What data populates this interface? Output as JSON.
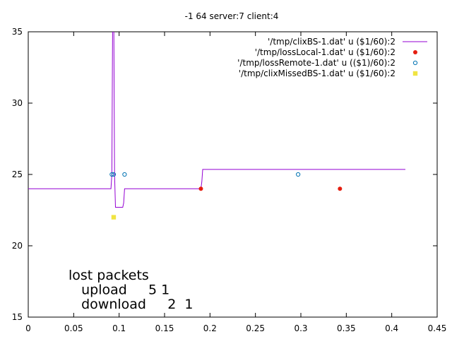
{
  "chart_data": {
    "type": "line",
    "title": "-1 64 server:7 client:4",
    "xlabel": "",
    "ylabel": "",
    "xlim": [
      0,
      0.45
    ],
    "ylim": [
      15,
      35
    ],
    "xticks": [
      "0",
      "0.05",
      "0.1",
      "0.15",
      "0.2",
      "0.25",
      "0.3",
      "0.35",
      "0.4",
      "0.45"
    ],
    "yticks": [
      "15",
      "20",
      "25",
      "30",
      "35"
    ],
    "grid": false,
    "legend_position": "top-right",
    "series": [
      {
        "name": "'/tmp/clixBS-1.dat' u ($1/60):2",
        "kind": "line",
        "color": "#9400d3",
        "x": [
          0.0,
          0.091,
          0.092,
          0.093,
          0.094,
          0.095,
          0.096,
          0.104,
          0.105,
          0.106,
          0.19,
          0.191,
          0.192,
          0.415
        ],
        "y": [
          24.0,
          24.0,
          25.0,
          38.0,
          38.0,
          25.0,
          22.7,
          22.7,
          23.0,
          24.0,
          24.0,
          24.5,
          25.35,
          25.35
        ]
      },
      {
        "name": "'/tmp/lossLocal-1.dat' u ($1/60):2",
        "kind": "points",
        "marker": "filled-circle",
        "color": "#e51e10",
        "x": [
          0.19,
          0.343
        ],
        "y": [
          24,
          24
        ]
      },
      {
        "name": "'/tmp/lossRemote-1.dat' u (($1)/60):2",
        "kind": "points",
        "marker": "open-circle",
        "color": "#0072b2",
        "x": [
          0.092,
          0.094,
          0.106,
          0.297
        ],
        "y": [
          25,
          25,
          25,
          25
        ]
      },
      {
        "name": "'/tmp/clixMissedBS-1.dat' u ($1/60):2",
        "kind": "points",
        "marker": "filled-square",
        "color": "#f0e442",
        "x": [
          0.094
        ],
        "y": [
          22
        ]
      }
    ],
    "annotation": {
      "lines": [
        "lost packets",
        "   upload     5 1",
        "   download     2  1"
      ]
    }
  }
}
